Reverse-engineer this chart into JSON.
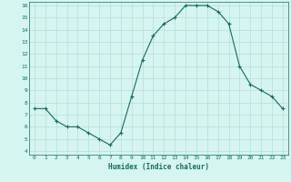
{
  "x": [
    0,
    1,
    2,
    3,
    4,
    5,
    6,
    7,
    8,
    9,
    10,
    11,
    12,
    13,
    14,
    15,
    16,
    17,
    18,
    19,
    20,
    21,
    22,
    23
  ],
  "y": [
    7.5,
    7.5,
    6.5,
    6.0,
    6.0,
    5.5,
    5.0,
    4.5,
    5.5,
    8.5,
    11.5,
    13.5,
    14.5,
    15.0,
    16.0,
    16.0,
    16.0,
    15.5,
    14.5,
    11.0,
    9.5,
    9.0,
    8.5,
    7.5
  ],
  "xlabel": "Humidex (Indice chaleur)",
  "ylim": [
    4,
    16
  ],
  "xlim": [
    -0.5,
    23.5
  ],
  "yticks": [
    4,
    5,
    6,
    7,
    8,
    9,
    10,
    11,
    12,
    13,
    14,
    15,
    16
  ],
  "xticks": [
    0,
    1,
    2,
    3,
    4,
    5,
    6,
    7,
    8,
    9,
    10,
    11,
    12,
    13,
    14,
    15,
    16,
    17,
    18,
    19,
    20,
    21,
    22,
    23
  ],
  "line_color": "#1a6b5a",
  "bg_color": "#d4f5f0",
  "grid_color": "#b8ddd8",
  "marker": "+"
}
